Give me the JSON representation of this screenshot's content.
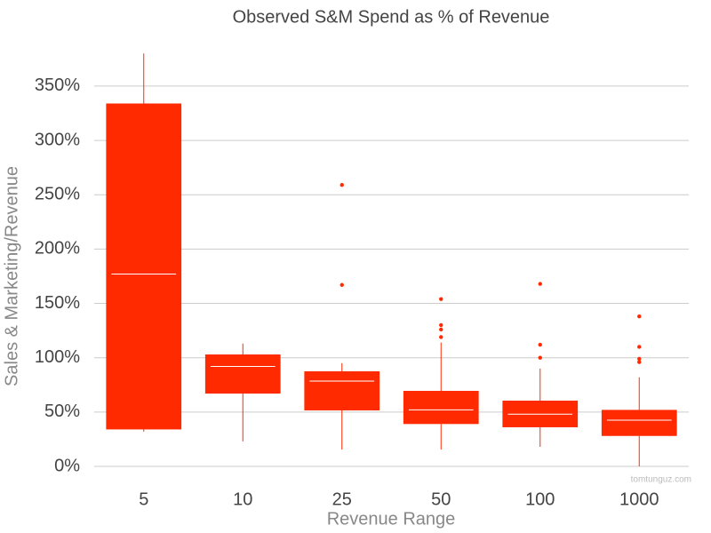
{
  "chart_data": {
    "type": "box",
    "title": "Observed S&M Spend as % of Revenue",
    "x_label": "Revenue Range",
    "y_label": "Sales & Marketing/Revenue",
    "watermark": "tomtunguz.com",
    "color": "#ff2a00",
    "median_color": "#ffffff",
    "grid": true,
    "categories": [
      "5",
      "10",
      "25",
      "50",
      "100",
      "1000"
    ],
    "boxes": [
      {
        "min": 32,
        "q1": 34,
        "median": 177,
        "q3": 334,
        "max": 380,
        "outliers": []
      },
      {
        "min": 23,
        "q1": 67,
        "median": 92,
        "q3": 103,
        "max": 113,
        "outliers": []
      },
      {
        "min": 15.5,
        "q1": 51.5,
        "median": 78.5,
        "q3": 87.5,
        "max": 95,
        "outliers": [
          259,
          167
        ]
      },
      {
        "min": 15.5,
        "q1": 39,
        "median": 52,
        "q3": 69.5,
        "max": 114,
        "outliers": [
          154,
          130,
          126,
          119
        ]
      },
      {
        "min": 18,
        "q1": 36,
        "median": 48,
        "q3": 60.5,
        "max": 90,
        "outliers": [
          168,
          112,
          100
        ]
      },
      {
        "min": 0,
        "q1": 28,
        "median": 42.5,
        "q3": 52,
        "max": 82,
        "outliers": [
          138,
          110,
          99,
          96
        ]
      }
    ],
    "ylim": [
      0,
      390
    ],
    "yticks": [
      {
        "value": 0,
        "label": "0%"
      },
      {
        "value": 50,
        "label": "50%"
      },
      {
        "value": 100,
        "label": "100%"
      },
      {
        "value": 150,
        "label": "150%"
      },
      {
        "value": 200,
        "label": "200%"
      },
      {
        "value": 250,
        "label": "250%"
      },
      {
        "value": 300,
        "label": "300%"
      },
      {
        "value": 350,
        "label": "350%"
      }
    ]
  }
}
